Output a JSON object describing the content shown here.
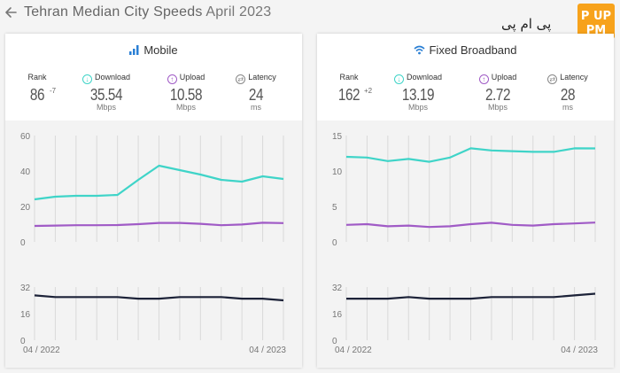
{
  "header": {
    "city": "Tehran Median City Speeds",
    "date": "April 2023",
    "logo_text": "پی ام پی",
    "logo_badge": "PM UP"
  },
  "colors": {
    "download": "#3fd4c8",
    "upload": "#a05bc6",
    "latency": "#1c2238",
    "grid": "#d9d9d9"
  },
  "mobile": {
    "title": "Mobile",
    "metrics": {
      "rank": {
        "label": "Rank",
        "value": "86",
        "delta": "-7"
      },
      "download": {
        "label": "Download",
        "value": "35.54",
        "unit": "Mbps"
      },
      "upload": {
        "label": "Upload",
        "value": "10.58",
        "unit": "Mbps"
      },
      "latency": {
        "label": "Latency",
        "value": "24",
        "unit": "ms"
      }
    }
  },
  "broadband": {
    "title": "Fixed Broadband",
    "metrics": {
      "rank": {
        "label": "Rank",
        "value": "162",
        "delta": "+2"
      },
      "download": {
        "label": "Download",
        "value": "13.19",
        "unit": "Mbps"
      },
      "upload": {
        "label": "Upload",
        "value": "2.72",
        "unit": "Mbps"
      },
      "latency": {
        "label": "Latency",
        "value": "28",
        "unit": "ms"
      }
    }
  },
  "chart_data": [
    {
      "type": "line",
      "x_start_label": "04 / 2022",
      "x_end_label": "04 / 2023",
      "speed_ylim": [
        0,
        60
      ],
      "speed_ticks": [
        0,
        20,
        40,
        60
      ],
      "latency_ylim": [
        0,
        32
      ],
      "latency_ticks": [
        0,
        16,
        32
      ],
      "series": [
        {
          "key": "download",
          "values": [
            24,
            25.5,
            26,
            26,
            26.5,
            35,
            43,
            40.5,
            38,
            35,
            34,
            37,
            35.5
          ]
        },
        {
          "key": "upload",
          "values": [
            9,
            9.2,
            9.4,
            9.4,
            9.5,
            10,
            10.7,
            10.7,
            10.2,
            9.4,
            9.8,
            10.8,
            10.58
          ]
        },
        {
          "key": "latency",
          "values": [
            27,
            26,
            26,
            26,
            26,
            25,
            25,
            26,
            26,
            26,
            25,
            25,
            24
          ]
        }
      ]
    },
    {
      "type": "line",
      "x_start_label": "04 / 2022",
      "x_end_label": "04 / 2023",
      "speed_ylim": [
        0,
        15
      ],
      "speed_ticks": [
        0,
        5,
        10,
        15
      ],
      "latency_ylim": [
        0,
        32
      ],
      "latency_ticks": [
        0,
        16,
        32
      ],
      "series": [
        {
          "key": "download",
          "values": [
            12,
            11.9,
            11.4,
            11.7,
            11.3,
            11.9,
            13.2,
            12.9,
            12.8,
            12.7,
            12.7,
            13.2,
            13.19
          ]
        },
        {
          "key": "upload",
          "values": [
            2.4,
            2.5,
            2.2,
            2.3,
            2.1,
            2.2,
            2.5,
            2.7,
            2.4,
            2.3,
            2.5,
            2.6,
            2.72
          ]
        },
        {
          "key": "latency",
          "values": [
            25,
            25,
            25,
            26,
            25,
            25,
            25,
            26,
            26,
            26,
            26,
            27,
            28
          ]
        }
      ]
    }
  ]
}
